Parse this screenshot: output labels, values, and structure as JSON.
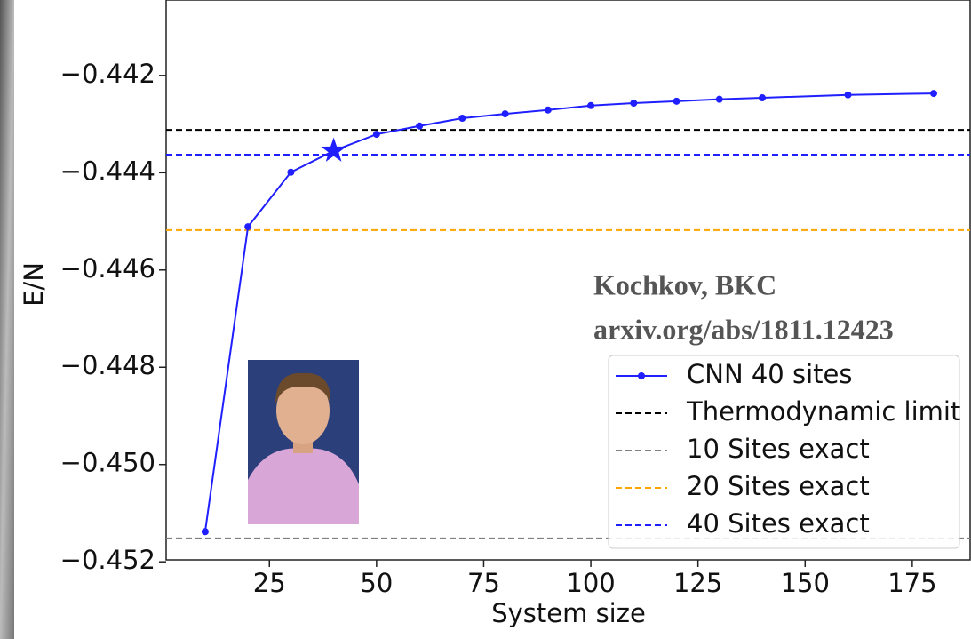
{
  "chart_data": {
    "type": "line",
    "x_label": "System size",
    "y_label": "E/N",
    "annotations": [
      "Kochkov, BKC",
      "arxiv.org/abs/1811.12423"
    ],
    "x": [
      10,
      20,
      30,
      40,
      50,
      60,
      70,
      80,
      90,
      100,
      110,
      120,
      130,
      140,
      160,
      180
    ],
    "series": [
      {
        "name": "CNN 40 sites",
        "color": "#1f1fff",
        "values": [
          -0.45138,
          -0.44511,
          -0.44399,
          -0.44355,
          -0.44321,
          -0.44304,
          -0.44288,
          -0.44279,
          -0.44271,
          -0.44262,
          -0.44257,
          -0.44253,
          -0.44249,
          -0.44246,
          -0.4424,
          -0.44237
        ]
      }
    ],
    "highlight": {
      "x": 40,
      "y": -0.44355,
      "color": "#1f1fff"
    },
    "reference_lines": [
      {
        "name": "Thermodynamic limit",
        "color": "#000000",
        "value": -0.44312
      },
      {
        "name": "10 Sites exact",
        "color": "#808080",
        "value": -0.45152
      },
      {
        "name": "20 Sites exact",
        "color": "#ffa500",
        "value": -0.44518
      },
      {
        "name": "40 Sites exact",
        "color": "#1f1fff",
        "value": -0.44363
      }
    ],
    "xlim": [
      0.9,
      188.5
    ],
    "ylim": [
      -0.45196,
      -0.44045
    ],
    "xticks": [
      25,
      50,
      75,
      100,
      125,
      150,
      175
    ],
    "yticks": [
      {
        "value": -0.452,
        "label": "−0.452"
      },
      {
        "value": -0.45,
        "label": "−0.450"
      },
      {
        "value": -0.448,
        "label": "−0.448"
      },
      {
        "value": -0.446,
        "label": "−0.446"
      },
      {
        "value": -0.444,
        "label": "−0.444"
      },
      {
        "value": -0.442,
        "label": "−0.442"
      }
    ],
    "legend": "lower right"
  }
}
